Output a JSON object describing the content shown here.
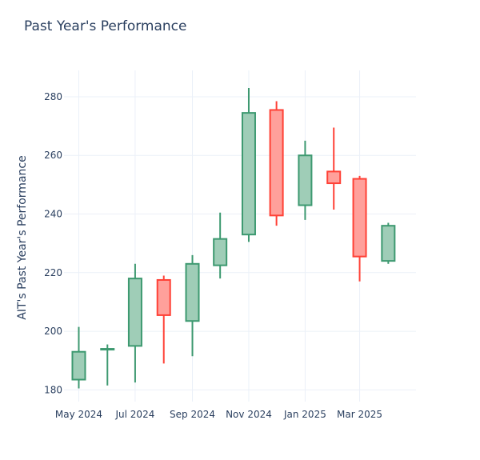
{
  "chart_data": {
    "type": "candlestick",
    "title": "Past Year's Performance",
    "ylabel": "AIT's Past Year's Performance",
    "xlabel": "",
    "ylim": [
      176,
      289
    ],
    "yticks": [
      180,
      200,
      220,
      240,
      260,
      280
    ],
    "xlim": [
      "2024-04-15",
      "2025-05-01"
    ],
    "xticks": [
      {
        "date": "2024-05-01",
        "label": "May 2024"
      },
      {
        "date": "2024-07-01",
        "label": "Jul 2024"
      },
      {
        "date": "2024-09-01",
        "label": "Sep 2024"
      },
      {
        "date": "2024-11-01",
        "label": "Nov 2024"
      },
      {
        "date": "2025-01-01",
        "label": "Jan 2025"
      },
      {
        "date": "2025-03-01",
        "label": "Mar 2025"
      }
    ],
    "grid": true,
    "colors": {
      "increasing": "#3d9970",
      "increasing_fill": "#9fcdb7",
      "decreasing": "#ff4136",
      "decreasing_fill": "#ffa09b",
      "grid": "#ebf0f8",
      "text": "#2a3f5f"
    },
    "candles": [
      {
        "date": "2024-05-01",
        "open": 183.5,
        "high": 201.5,
        "low": 180.5,
        "close": 193
      },
      {
        "date": "2024-06-01",
        "open": 194,
        "high": 195.5,
        "low": 181.5,
        "close": 194
      },
      {
        "date": "2024-07-01",
        "open": 195,
        "high": 223,
        "low": 182.5,
        "close": 218
      },
      {
        "date": "2024-08-01",
        "open": 217.5,
        "high": 219,
        "low": 189,
        "close": 205.5
      },
      {
        "date": "2024-09-01",
        "open": 203.5,
        "high": 226,
        "low": 191.5,
        "close": 223
      },
      {
        "date": "2024-10-01",
        "open": 222.5,
        "high": 240.5,
        "low": 218,
        "close": 231.5
      },
      {
        "date": "2024-11-01",
        "open": 233,
        "high": 283,
        "low": 230.5,
        "close": 274.5
      },
      {
        "date": "2024-12-01",
        "open": 275.5,
        "high": 278.5,
        "low": 236,
        "close": 239.5
      },
      {
        "date": "2025-01-01",
        "open": 243,
        "high": 265,
        "low": 238,
        "close": 260
      },
      {
        "date": "2025-02-01",
        "open": 254.5,
        "high": 269.5,
        "low": 241.5,
        "close": 250.5
      },
      {
        "date": "2025-03-01",
        "open": 252,
        "high": 253,
        "low": 217,
        "close": 225.5
      },
      {
        "date": "2025-04-01",
        "open": 224,
        "high": 237,
        "low": 223,
        "close": 236
      }
    ]
  }
}
